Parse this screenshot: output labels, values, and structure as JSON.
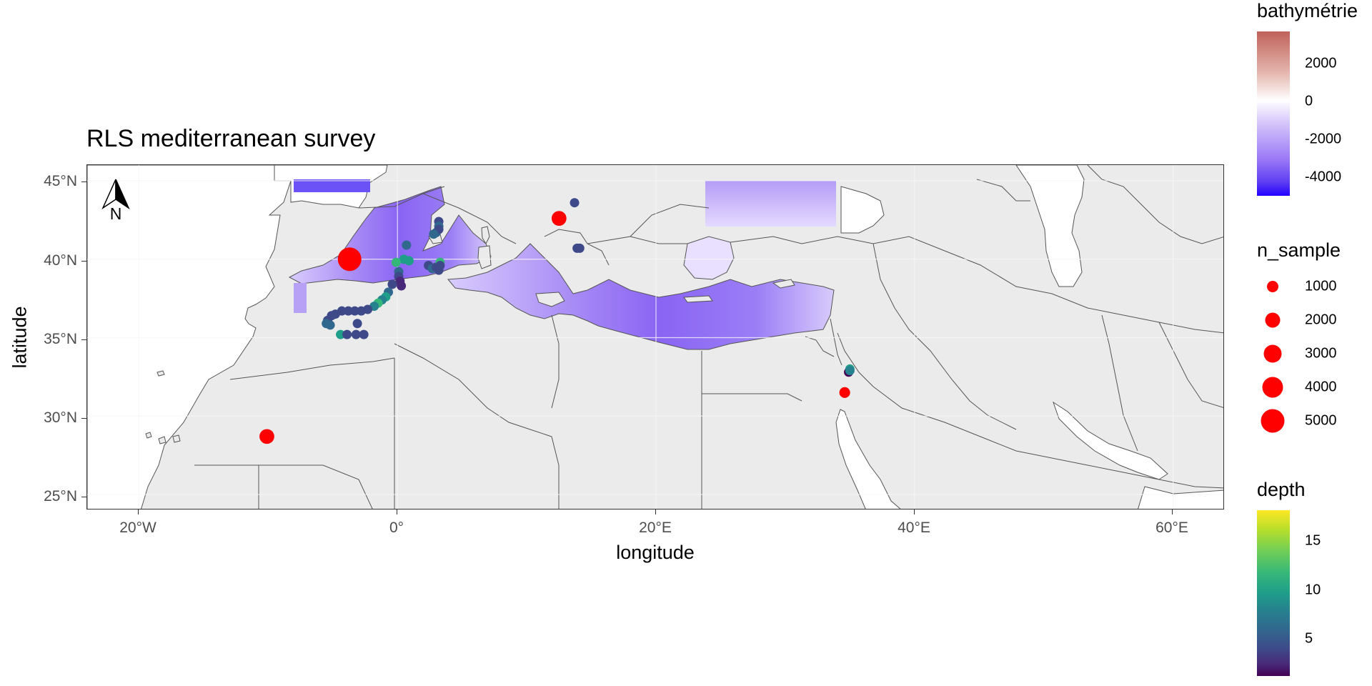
{
  "title": "RLS mediterranean survey",
  "x_axis": {
    "title": "longitude",
    "ticks": [
      "20°W",
      "0°",
      "20°E",
      "40°E",
      "60°E"
    ],
    "tick_lon": [
      -20,
      0,
      20,
      40,
      60
    ]
  },
  "y_axis": {
    "title": "latitude",
    "ticks": [
      "45°N",
      "40°N",
      "35°N",
      "30°N",
      "25°N"
    ],
    "tick_lat": [
      45,
      40,
      35,
      30,
      25
    ]
  },
  "extent": {
    "lon": [
      -24,
      64
    ],
    "lat": [
      24,
      46
    ]
  },
  "north_arrow": {
    "label": "N"
  },
  "legend_bathymetry": {
    "title": "bathymétrie",
    "labels": [
      "2000",
      "0",
      "-2000",
      "-4000"
    ],
    "values": [
      2000,
      0,
      -2000,
      -4000
    ],
    "range": [
      -5000,
      3800
    ],
    "colors": {
      "high": "#c0625a",
      "zero": "#ffffff",
      "low": "#2200ff"
    }
  },
  "legend_n_sample": {
    "title": "n_sample",
    "labels": [
      "1000",
      "2000",
      "3000",
      "4000",
      "5000"
    ],
    "values": [
      1000,
      2000,
      3000,
      4000,
      5000
    ],
    "color": "#ff0000"
  },
  "legend_depth": {
    "title": "depth",
    "labels": [
      "15",
      "10",
      "5"
    ],
    "values": [
      15,
      10,
      5
    ],
    "range": [
      1,
      18
    ]
  },
  "colors": {
    "land": "#ebebeb",
    "sea_outside": "#ffffff",
    "grid": "#f7f7f7",
    "border": "#555555",
    "sample": "#ff0000"
  },
  "chart_data": {
    "type": "scatter",
    "title": "RLS mediterranean survey",
    "xlabel": "longitude",
    "ylabel": "latitude",
    "xlim": [
      -24,
      64
    ],
    "ylim": [
      24,
      46
    ],
    "grid": true,
    "legend_position": "right",
    "n_sample_points": [
      {
        "lon": -3.7,
        "lat": 40.0,
        "n_sample": 5000
      },
      {
        "lon": -10.1,
        "lat": 28.7,
        "n_sample": 1300
      },
      {
        "lon": 12.5,
        "lat": 42.6,
        "n_sample": 1300
      },
      {
        "lon": 34.6,
        "lat": 31.5,
        "n_sample": 400
      }
    ],
    "survey_sites": [
      {
        "lon": 3.2,
        "lat": 42.4,
        "depth": 5
      },
      {
        "lon": 3.2,
        "lat": 42.1,
        "depth": 6
      },
      {
        "lon": 3.0,
        "lat": 41.7,
        "depth": 7
      },
      {
        "lon": 3.2,
        "lat": 41.9,
        "depth": 5
      },
      {
        "lon": 2.8,
        "lat": 41.6,
        "depth": 6
      },
      {
        "lon": 0.7,
        "lat": 40.9,
        "depth": 6
      },
      {
        "lon": 0.5,
        "lat": 40.0,
        "depth": 11
      },
      {
        "lon": -0.1,
        "lat": 39.8,
        "depth": 12
      },
      {
        "lon": 0.1,
        "lat": 39.2,
        "depth": 6
      },
      {
        "lon": 0.1,
        "lat": 38.9,
        "depth": 4
      },
      {
        "lon": 0.2,
        "lat": 38.6,
        "depth": 3
      },
      {
        "lon": 0.3,
        "lat": 38.3,
        "depth": 2
      },
      {
        "lon": -0.4,
        "lat": 38.4,
        "depth": 5
      },
      {
        "lon": -0.7,
        "lat": 37.9,
        "depth": 6
      },
      {
        "lon": -0.9,
        "lat": 37.6,
        "depth": 10
      },
      {
        "lon": -1.2,
        "lat": 37.4,
        "depth": 8
      },
      {
        "lon": -1.5,
        "lat": 37.2,
        "depth": 13
      },
      {
        "lon": -1.8,
        "lat": 37.0,
        "depth": 9
      },
      {
        "lon": -2.3,
        "lat": 36.8,
        "depth": 4
      },
      {
        "lon": -2.8,
        "lat": 36.7,
        "depth": 4
      },
      {
        "lon": -3.3,
        "lat": 36.7,
        "depth": 4
      },
      {
        "lon": -3.8,
        "lat": 36.7,
        "depth": 4
      },
      {
        "lon": -4.3,
        "lat": 36.7,
        "depth": 4
      },
      {
        "lon": -4.8,
        "lat": 36.5,
        "depth": 4
      },
      {
        "lon": -5.1,
        "lat": 36.4,
        "depth": 5
      },
      {
        "lon": -5.4,
        "lat": 36.1,
        "depth": 5
      },
      {
        "lon": -5.5,
        "lat": 35.9,
        "depth": 6
      },
      {
        "lon": -5.2,
        "lat": 35.8,
        "depth": 7
      },
      {
        "lon": -4.4,
        "lat": 35.2,
        "depth": 11
      },
      {
        "lon": -3.9,
        "lat": 35.2,
        "depth": 4
      },
      {
        "lon": -3.2,
        "lat": 35.2,
        "depth": 4
      },
      {
        "lon": -3.1,
        "lat": 35.9,
        "depth": 4
      },
      {
        "lon": -2.6,
        "lat": 35.2,
        "depth": 4
      },
      {
        "lon": 2.4,
        "lat": 39.6,
        "depth": 5
      },
      {
        "lon": 2.7,
        "lat": 39.4,
        "depth": 6
      },
      {
        "lon": 3.0,
        "lat": 39.5,
        "depth": 5
      },
      {
        "lon": 3.2,
        "lat": 39.3,
        "depth": 4
      },
      {
        "lon": 3.3,
        "lat": 39.8,
        "depth": 12
      },
      {
        "lon": 3.3,
        "lat": 39.6,
        "depth": 5
      },
      {
        "lon": 0.9,
        "lat": 39.9,
        "depth": 10
      },
      {
        "lon": 13.7,
        "lat": 43.6,
        "depth": 5
      },
      {
        "lon": 13.9,
        "lat": 40.7,
        "depth": 5
      },
      {
        "lon": 14.1,
        "lat": 40.7,
        "depth": 4
      },
      {
        "lon": 35.0,
        "lat": 33.0,
        "depth": 11
      },
      {
        "lon": 34.9,
        "lat": 32.8,
        "depth": 1
      },
      {
        "lon": 35.0,
        "lat": 32.9,
        "depth": 8
      }
    ]
  }
}
